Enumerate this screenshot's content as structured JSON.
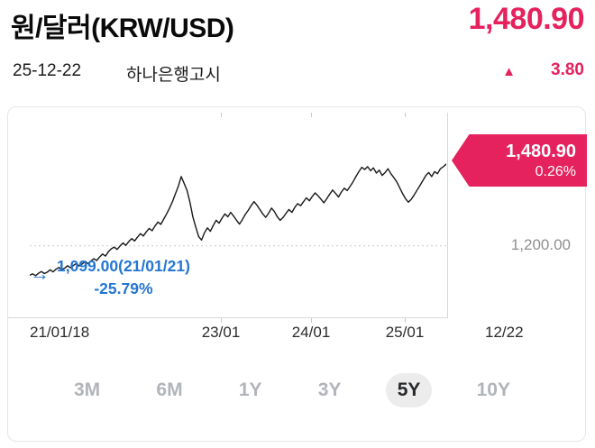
{
  "header": {
    "title": "원/달러(KRW/USD)",
    "price": "1,480.90",
    "date": "25-12-22",
    "source": "하나은행고시",
    "change_direction": "▲",
    "change": "3.80"
  },
  "colors": {
    "accent_pink": "#e5215e",
    "annotation_blue": "#2476d2"
  },
  "chart": {
    "y_axis_label": "1,200.00",
    "x_labels": {
      "start": "21/01/18",
      "l2": "23/01",
      "l3": "24/01",
      "l4": "25/01",
      "right": "12/22"
    },
    "callout": {
      "price": "1,480.90",
      "pct": "0.26%"
    },
    "annotation": {
      "arrow": "→",
      "text": "1,099.00(21/01/21)",
      "pct": "-25.79%"
    }
  },
  "periods": [
    {
      "label": "3M",
      "selected": false
    },
    {
      "label": "6M",
      "selected": false
    },
    {
      "label": "1Y",
      "selected": false
    },
    {
      "label": "3Y",
      "selected": false
    },
    {
      "label": "5Y",
      "selected": true
    },
    {
      "label": "10Y",
      "selected": false
    }
  ],
  "chart_data": {
    "type": "line",
    "title": "원/달러(KRW/USD) 5Y",
    "x_range": [
      "21/01/18",
      "25/12/22"
    ],
    "x_tick_labels": [
      "21/01/18",
      "23/01",
      "24/01",
      "25/01",
      "12/22"
    ],
    "y_tick_labels": [
      "1,200.00"
    ],
    "y_gridline_value": 1200,
    "ylim": [
      958,
      1645
    ],
    "grid": "dotted-horizontal-at-1200",
    "legend": "none",
    "last_value": 1480.9,
    "last_change_pct": "0.26%",
    "min_point": {
      "value": 1099.0,
      "date": "21/01/21",
      "pct_from_last": "-25.79%"
    },
    "values": [
      1099,
      1104,
      1098,
      1106,
      1112,
      1105,
      1110,
      1118,
      1111,
      1120,
      1126,
      1118,
      1124,
      1132,
      1125,
      1133,
      1140,
      1131,
      1138,
      1147,
      1139,
      1148,
      1156,
      1150,
      1162,
      1172,
      1165,
      1180,
      1190,
      1196,
      1188,
      1200,
      1210,
      1202,
      1215,
      1225,
      1217,
      1230,
      1242,
      1234,
      1248,
      1260,
      1252,
      1268,
      1282,
      1274,
      1292,
      1310,
      1330,
      1352,
      1378,
      1405,
      1438,
      1415,
      1390,
      1350,
      1300,
      1264,
      1232,
      1220,
      1245,
      1262,
      1250,
      1270,
      1288,
      1278,
      1295,
      1310,
      1300,
      1315,
      1302,
      1288,
      1275,
      1290,
      1308,
      1322,
      1338,
      1352,
      1340,
      1325,
      1310,
      1298,
      1312,
      1330,
      1318,
      1300,
      1288,
      1298,
      1312,
      1325,
      1315,
      1332,
      1345,
      1338,
      1352,
      1365,
      1355,
      1370,
      1382,
      1372,
      1360,
      1348,
      1362,
      1378,
      1392,
      1380,
      1368,
      1385,
      1398,
      1390,
      1405,
      1420,
      1438,
      1455,
      1470,
      1462,
      1472,
      1458,
      1468,
      1450,
      1460,
      1442,
      1452,
      1465,
      1448,
      1435,
      1420,
      1400,
      1380,
      1362,
      1350,
      1360,
      1375,
      1392,
      1408,
      1425,
      1442,
      1452,
      1438,
      1455,
      1448,
      1465,
      1472,
      1480.9
    ]
  }
}
